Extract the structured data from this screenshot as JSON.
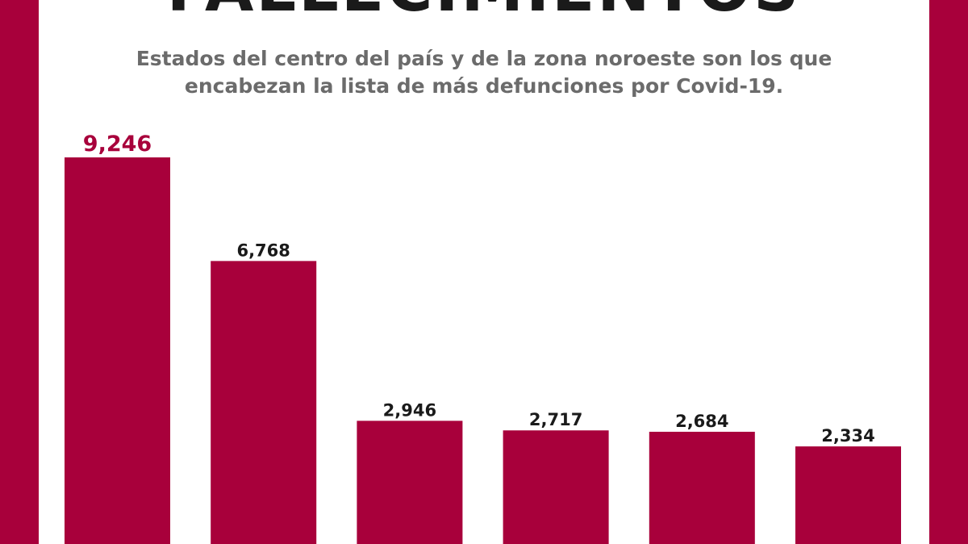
{
  "title": "FALLECIMIENTOS",
  "subtitle": "Estados del centro del país y de la zona noroeste son los que encabezan la lista de más defunciones por Covid-19.",
  "colors": {
    "bar": "#a8003b",
    "highlight_label": "#a8003b",
    "label": "#1a1a1a",
    "side_band": "#a8003b"
  },
  "chart_data": {
    "type": "bar",
    "categories": [
      "",
      "",
      "",
      "",
      "",
      ""
    ],
    "values": [
      9246,
      6768,
      2946,
      2717,
      2684,
      2334
    ],
    "value_labels": [
      "9,246",
      "6,768",
      "2,946",
      "2,717",
      "2,684",
      "2,334"
    ],
    "highlight_index": 0,
    "grid": false,
    "legend": "none"
  }
}
